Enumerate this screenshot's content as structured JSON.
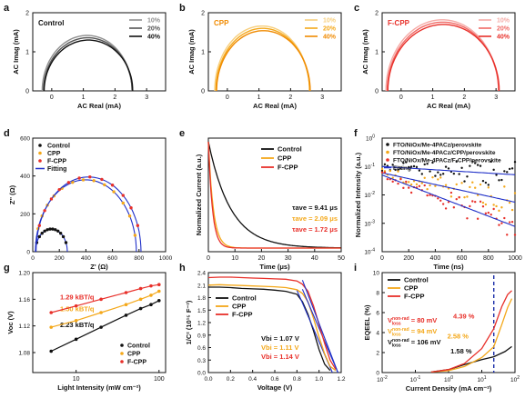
{
  "colors": {
    "black": "#111111",
    "grey": "#555555",
    "lightgrey": "#909090",
    "orange_dark": "#f08a00",
    "orange": "#f4a81a",
    "orange_light": "#f7cf7e",
    "red_dark": "#e8302a",
    "red": "#f06a66",
    "red_light": "#f5aaa6",
    "blue": "#2030c8"
  },
  "chart_data": [
    {
      "panel": "a",
      "type": "line",
      "title": "Control",
      "xlabel": "AC Real (mA)",
      "ylabel": "AC Imag (mA)",
      "xlim": [
        -0.6,
        3.6
      ],
      "ylim": [
        0,
        2.0
      ],
      "xticks": [
        0,
        1,
        2,
        3
      ],
      "yticks": [
        0,
        1,
        2
      ],
      "legend_position": "top-right",
      "series": [
        {
          "name": "10%",
          "cx": 1.12,
          "r": 1.42,
          "ry": 1.42
        },
        {
          "name": "20%",
          "cx": 1.14,
          "r": 1.4,
          "ry": 1.36
        },
        {
          "name": "40%",
          "cx": 1.16,
          "r": 1.4,
          "ry": 1.3
        }
      ]
    },
    {
      "panel": "b",
      "type": "line",
      "title": "CPP",
      "xlabel": "AC Real (mA)",
      "ylabel": "AC Imag (mA)",
      "xlim": [
        -0.6,
        3.6
      ],
      "ylim": [
        0,
        2.0
      ],
      "xticks": [
        0,
        1,
        2,
        3
      ],
      "yticks": [
        0,
        1,
        2
      ],
      "legend_position": "top-right",
      "series": [
        {
          "name": "10%",
          "cx": 1.1,
          "r": 1.5,
          "ry": 1.66
        },
        {
          "name": "20%",
          "cx": 1.12,
          "r": 1.48,
          "ry": 1.6
        },
        {
          "name": "40%",
          "cx": 1.14,
          "r": 1.48,
          "ry": 1.54
        }
      ]
    },
    {
      "panel": "c",
      "type": "line",
      "title": "F-CPP",
      "xlabel": "AC Real (mA)",
      "ylabel": "AC Imag (mA)",
      "xlim": [
        -0.6,
        3.6
      ],
      "ylim": [
        0,
        2.0
      ],
      "xticks": [
        0,
        1,
        2,
        3
      ],
      "yticks": [
        0,
        1,
        2
      ],
      "legend_position": "top-right",
      "series": [
        {
          "name": "10%",
          "cx": 1.3,
          "r": 1.78,
          "ry": 1.82
        },
        {
          "name": "20%",
          "cx": 1.32,
          "r": 1.76,
          "ry": 1.76
        },
        {
          "name": "40%",
          "cx": 1.34,
          "r": 1.76,
          "ry": 1.7
        }
      ]
    },
    {
      "panel": "d",
      "type": "scatter",
      "xlabel": "Z' (Ω)",
      "ylabel": "Z'' (Ω)",
      "xlim": [
        0,
        1000
      ],
      "ylim": [
        0,
        600
      ],
      "xticks": [
        0,
        200,
        400,
        600,
        800,
        1000
      ],
      "yticks": [
        0,
        200,
        400,
        600
      ],
      "legend_position": "top-left",
      "series": [
        {
          "name": "Control",
          "cx": 140,
          "r": 120,
          "xs": [
            30,
            50,
            70,
            90,
            110,
            130,
            150,
            170,
            190,
            210,
            230,
            250
          ]
        },
        {
          "name": "CPP",
          "cx": 400,
          "r": 380,
          "xs": [
            40,
            70,
            110,
            160,
            220,
            300,
            380,
            460,
            540,
            610,
            680,
            730,
            770
          ]
        },
        {
          "name": "F-CPP",
          "cx": 420,
          "r": 395,
          "xs": [
            50,
            90,
            140,
            200,
            270,
            350,
            430,
            520,
            600,
            680,
            740,
            790
          ]
        },
        {
          "name": "Fitting"
        }
      ]
    },
    {
      "panel": "e",
      "type": "line",
      "xlabel": "Time (μs)",
      "ylabel": "Normalized Current (a.u.)",
      "xlim": [
        0,
        50
      ],
      "ylim": [
        0,
        1
      ],
      "xticks": [
        0,
        10,
        20,
        30,
        40,
        50
      ],
      "legend_position": "top-right",
      "series": [
        {
          "name": "Control",
          "tau_ave": "τave = 9.41 μs",
          "tau": 9.41
        },
        {
          "name": "CPP",
          "tau_ave": "τave = 2.09 μs",
          "tau": 2.09
        },
        {
          "name": "F-CPP",
          "tau_ave": "τave = 1.72 μs",
          "tau": 1.72
        }
      ]
    },
    {
      "panel": "f",
      "type": "scatter",
      "yscale": "log",
      "xlabel": "Time (ns)",
      "ylabel": "Normalized Intensity (a.u.)",
      "xlim": [
        0,
        1000
      ],
      "ylim": [
        0.0001,
        1
      ],
      "xticks": [
        0,
        200,
        400,
        600,
        800,
        1000
      ],
      "yticks": [
        "10^-4",
        "10^-3",
        "10^-2",
        "10^-1",
        "10^0"
      ],
      "legend_position": "top-left",
      "series": [
        {
          "name": "FTO/NiOx/Me-4PACz/perovskite",
          "tau": 1500,
          "a0": 0.1
        },
        {
          "name": "FTO/NiOx/Me-4PACz/CPP/perovskite",
          "tau": 420,
          "a0": 0.06
        },
        {
          "name": "FTO/NiOx/Me-4PACz/F-CPP/perovskite",
          "tau": 240,
          "a0": 0.05
        },
        {
          "name": "Fitting"
        }
      ]
    },
    {
      "panel": "g",
      "type": "scatter",
      "xscale": "log",
      "xlabel": "Light Intensity (mW cm⁻²)",
      "ylabel": "Voc (V)",
      "xlim": [
        3,
        120
      ],
      "ylim": [
        1.05,
        1.2
      ],
      "xticks": [
        10,
        100
      ],
      "yticks": [
        1.08,
        1.12,
        1.16,
        1.2
      ],
      "legend_position": "bottom-right",
      "series": [
        {
          "name": "Control",
          "x": [
            5,
            10,
            20,
            40,
            60,
            80,
            100
          ],
          "y": [
            1.082,
            1.1,
            1.118,
            1.136,
            1.146,
            1.152,
            1.158
          ],
          "label": "2.23 kBT/q"
        },
        {
          "name": "CPP",
          "x": [
            5,
            10,
            20,
            40,
            60,
            80,
            100
          ],
          "y": [
            1.118,
            1.128,
            1.14,
            1.152,
            1.16,
            1.166,
            1.172
          ],
          "label": "1.50 kBT/q"
        },
        {
          "name": "F-CPP",
          "x": [
            5,
            10,
            20,
            40,
            60,
            80,
            100
          ],
          "y": [
            1.14,
            1.15,
            1.16,
            1.17,
            1.176,
            1.18,
            1.182
          ],
          "label": "1.29 kBT/q"
        }
      ]
    },
    {
      "panel": "h",
      "type": "line",
      "xlabel": "Voltage (V)",
      "ylabel": "1/C² (10¹⁵ F⁻²)",
      "xlim": [
        0,
        1.2
      ],
      "ylim": [
        0,
        2.4
      ],
      "xticks": [
        0.0,
        0.2,
        0.4,
        0.6,
        0.8,
        1.0,
        1.2
      ],
      "yticks": [
        0.0,
        0.3,
        0.6,
        0.9,
        1.2,
        1.5,
        1.8,
        2.1,
        2.4
      ],
      "legend_position": "top-right",
      "series": [
        {
          "name": "Control",
          "label": "Vbi = 1.07 V",
          "x": [
            0,
            0.1,
            0.2,
            0.3,
            0.4,
            0.5,
            0.6,
            0.7,
            0.8,
            0.85,
            0.9,
            0.95,
            1.0,
            1.05,
            1.1
          ],
          "y": [
            2.05,
            2.05,
            2.04,
            2.02,
            2.01,
            2.0,
            1.98,
            1.95,
            1.88,
            1.7,
            1.4,
            1.0,
            0.55,
            0.2,
            0.05
          ]
        },
        {
          "name": "CPP",
          "label": "Vbi = 1.11 V",
          "x": [
            0,
            0.1,
            0.2,
            0.3,
            0.4,
            0.5,
            0.6,
            0.7,
            0.8,
            0.85,
            0.9,
            0.95,
            1.0,
            1.05,
            1.1,
            1.15
          ],
          "y": [
            2.1,
            2.11,
            2.1,
            2.09,
            2.08,
            2.07,
            2.06,
            2.04,
            1.99,
            1.9,
            1.7,
            1.3,
            0.85,
            0.45,
            0.15,
            0.05
          ]
        },
        {
          "name": "F-CPP",
          "label": "Vbi = 1.14 V",
          "x": [
            0,
            0.1,
            0.2,
            0.3,
            0.4,
            0.5,
            0.6,
            0.7,
            0.8,
            0.85,
            0.9,
            0.95,
            1.0,
            1.05,
            1.1,
            1.15
          ],
          "y": [
            2.28,
            2.29,
            2.29,
            2.28,
            2.27,
            2.26,
            2.25,
            2.24,
            2.2,
            2.12,
            1.95,
            1.6,
            1.15,
            0.7,
            0.3,
            0.08
          ]
        }
      ]
    },
    {
      "panel": "i",
      "type": "line",
      "xscale": "log",
      "xlabel": "Current Density (mA cm⁻²)",
      "ylabel": "EQEEL (%)",
      "xlim": [
        0.01,
        100
      ],
      "ylim": [
        0,
        10
      ],
      "xticks": [
        "10^-2",
        "10^-1",
        "10^0",
        "10^1",
        "10^2"
      ],
      "yticks": [
        0,
        2,
        4,
        6,
        8,
        10
      ],
      "legend_position": "top-left",
      "marker_x": 23,
      "series": [
        {
          "name": "Control",
          "pct": "1.58 %",
          "loss": "106 mV",
          "x": [
            0.3,
            1,
            3,
            10,
            23,
            50,
            80
          ],
          "y": [
            0.05,
            0.3,
            0.8,
            1.3,
            1.58,
            2.1,
            2.6
          ]
        },
        {
          "name": "CPP",
          "pct": "2.58 %",
          "loss": "94 mV",
          "x": [
            0.3,
            1,
            3,
            10,
            23,
            40,
            60,
            80
          ],
          "y": [
            0.05,
            0.2,
            0.6,
            1.5,
            2.58,
            4.8,
            6.5,
            7.4
          ]
        },
        {
          "name": "F-CPP",
          "pct": "4.39 %",
          "loss": "80 mV",
          "x": [
            0.3,
            1,
            3,
            10,
            23,
            40,
            60,
            80
          ],
          "y": [
            0.05,
            0.3,
            0.9,
            2.4,
            4.39,
            6.6,
            7.8,
            8.2
          ]
        }
      ]
    }
  ]
}
